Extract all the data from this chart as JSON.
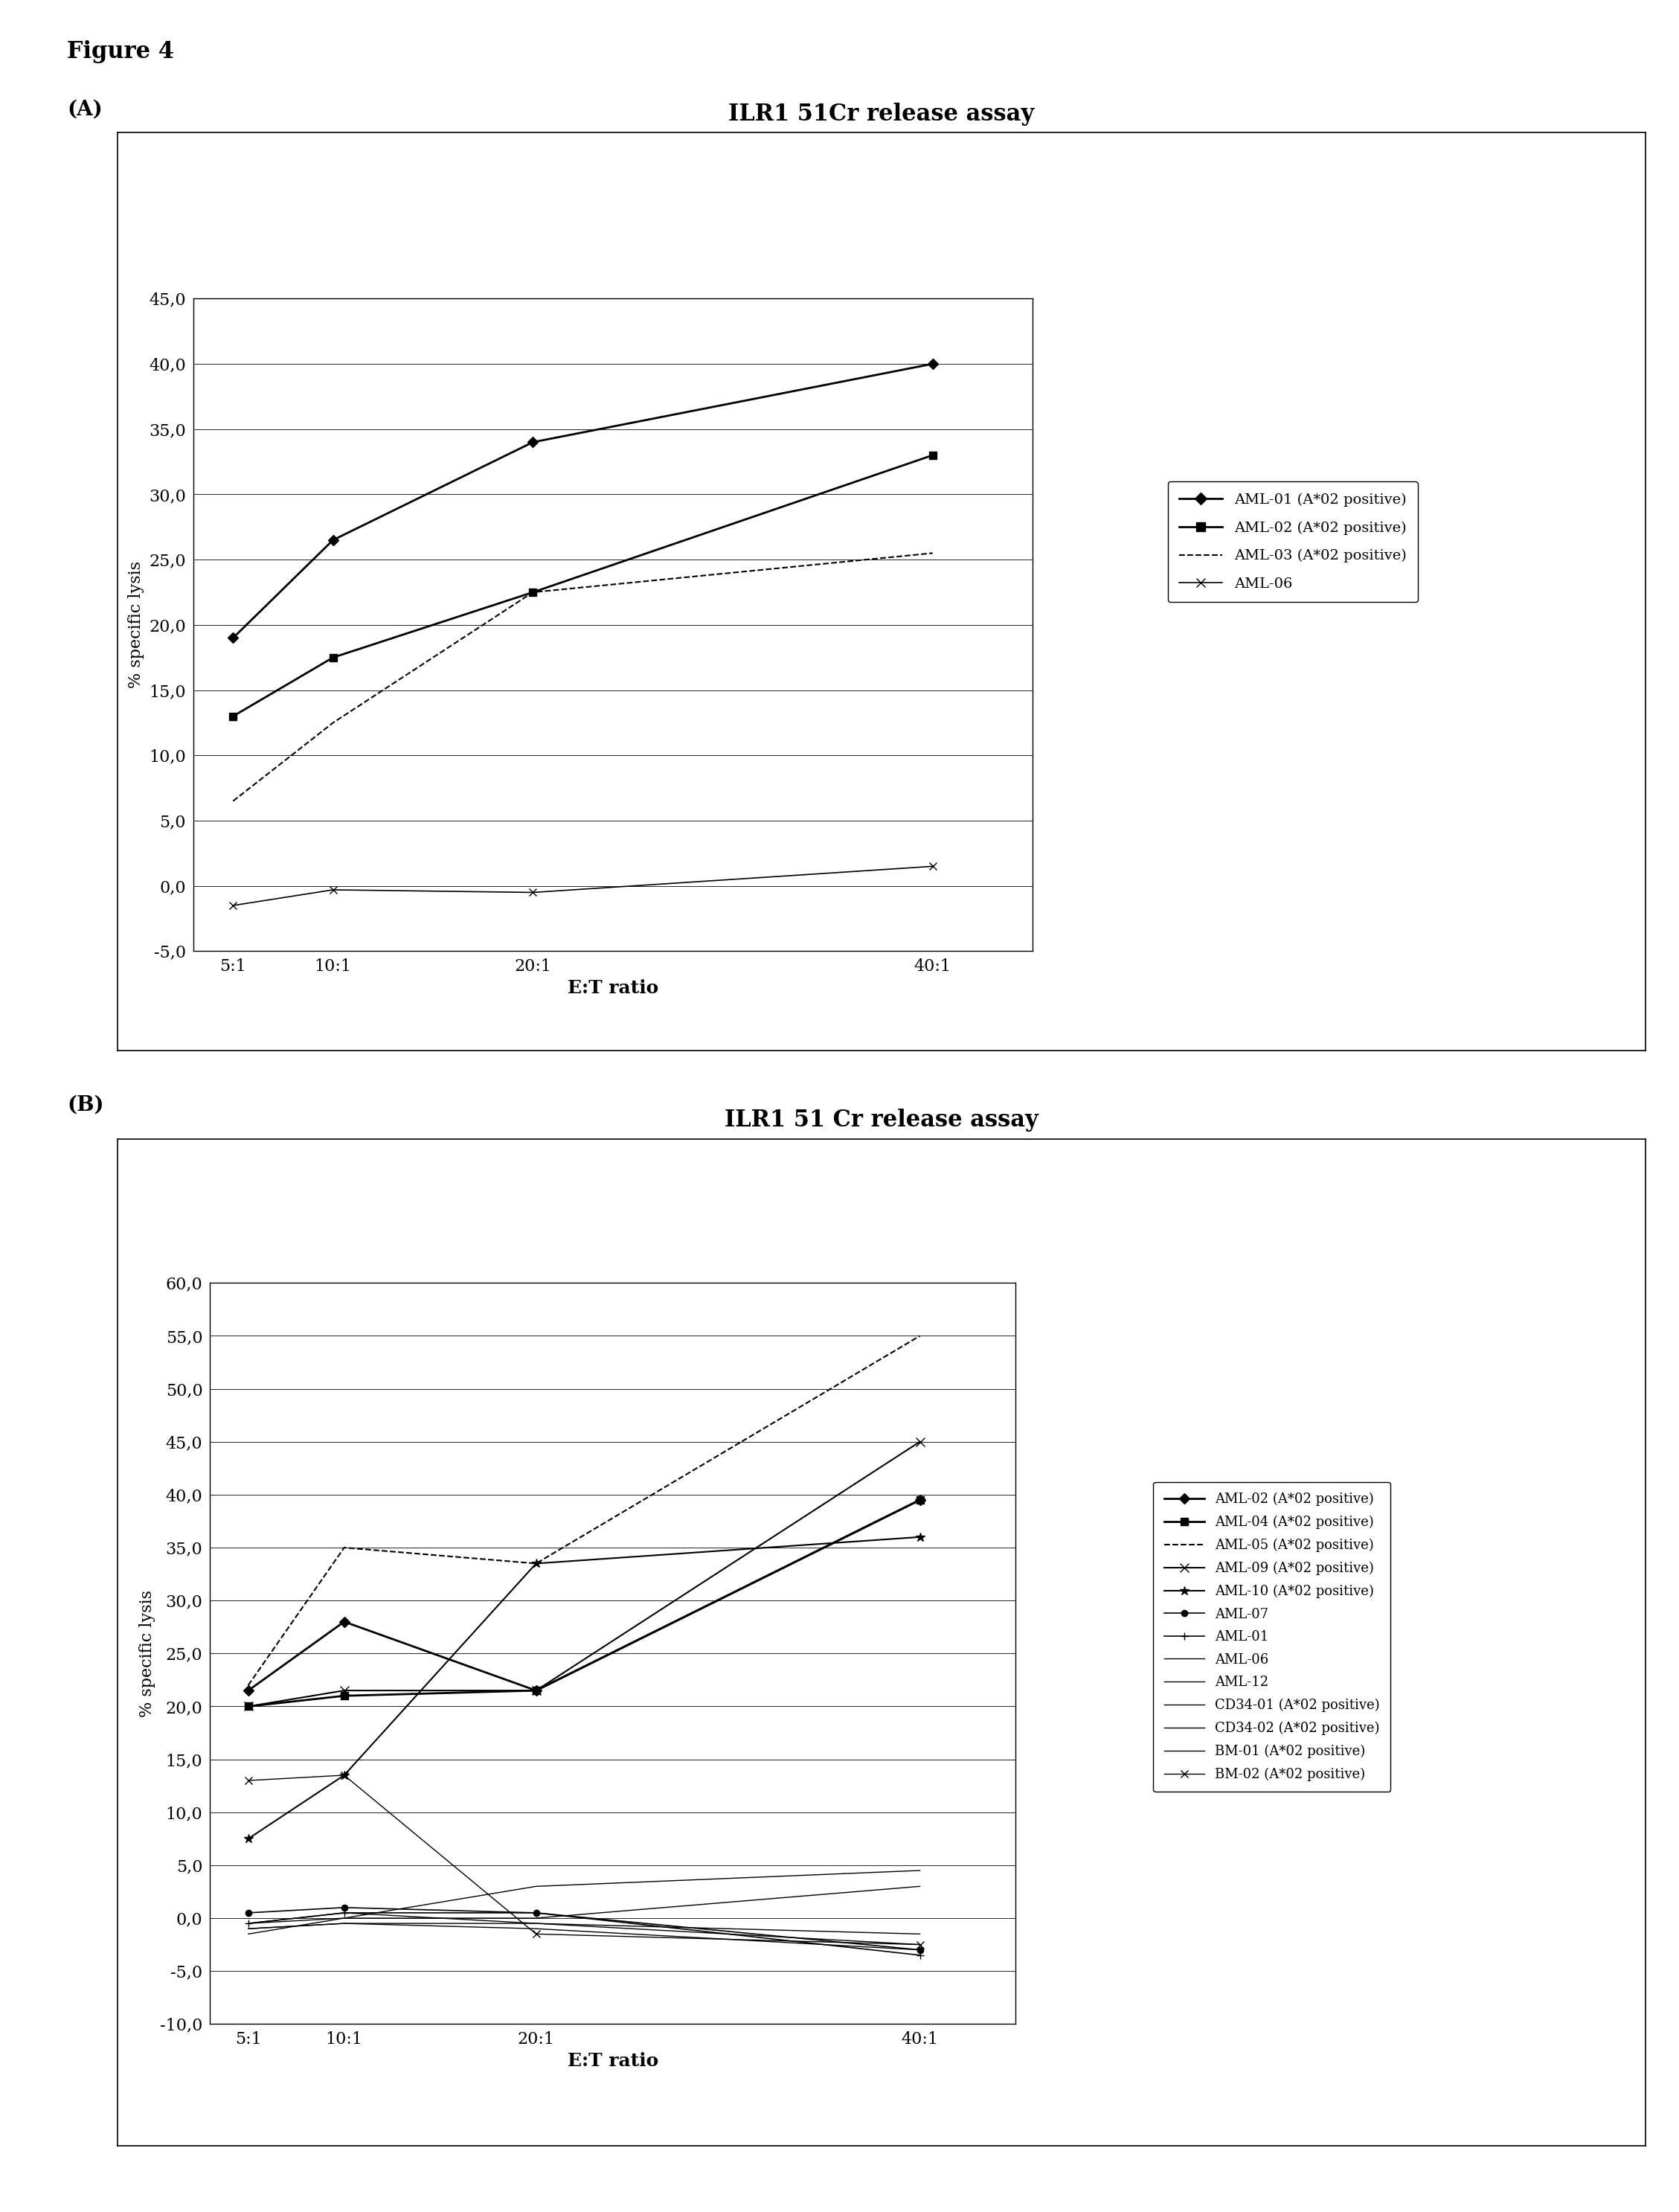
{
  "fig_label": "Figure 4",
  "panel_A": {
    "title": "ILR1 51Cr release assay",
    "xlabel": "E:T ratio",
    "ylabel": "% specific lysis",
    "xtick_labels": [
      "5:1",
      "10:1",
      "20:1",
      "40:1"
    ],
    "x_values": [
      5,
      10,
      20,
      40
    ],
    "ylim": [
      -5.0,
      45.0
    ],
    "yticks": [
      -5.0,
      0.0,
      5.0,
      10.0,
      15.0,
      20.0,
      25.0,
      30.0,
      35.0,
      40.0,
      45.0
    ],
    "series": [
      {
        "label": "AML-01 (A*02 positive)",
        "values": [
          19.0,
          26.5,
          34.0,
          40.0
        ],
        "linestyle": "-",
        "marker": "D",
        "linewidth": 2.0,
        "markersize": 7
      },
      {
        "label": "AML-02 (A*02 positive)",
        "values": [
          13.0,
          17.5,
          22.5,
          33.0
        ],
        "linestyle": "-",
        "marker": "s",
        "linewidth": 2.0,
        "markersize": 7
      },
      {
        "label": "AML-03 (A*02 positive)",
        "values": [
          6.5,
          12.5,
          22.5,
          25.5
        ],
        "linestyle": "--",
        "marker": null,
        "linewidth": 1.5,
        "markersize": 0
      },
      {
        "label": "AML-06",
        "values": [
          -1.5,
          -0.3,
          -0.5,
          1.5
        ],
        "linestyle": "-",
        "marker": "x",
        "linewidth": 1.2,
        "markersize": 7
      }
    ]
  },
  "panel_B": {
    "title": "ILR1 51 Cr release assay",
    "xlabel": "E:T ratio",
    "ylabel": "% specific lysis",
    "xtick_labels": [
      "5:1",
      "10:1",
      "20:1",
      "40:1"
    ],
    "x_values": [
      5,
      10,
      20,
      40
    ],
    "ylim": [
      -10.0,
      60.0
    ],
    "yticks": [
      -10.0,
      -5.0,
      0.0,
      5.0,
      10.0,
      15.0,
      20.0,
      25.0,
      30.0,
      35.0,
      40.0,
      45.0,
      50.0,
      55.0,
      60.0
    ],
    "series": [
      {
        "label": "AML-02 (A*02 positive)",
        "values": [
          21.5,
          28.0,
          21.5,
          39.5
        ],
        "linestyle": "-",
        "marker": "D",
        "linewidth": 2.0,
        "markersize": 7
      },
      {
        "label": "AML-04 (A*02 positive)",
        "values": [
          20.0,
          21.0,
          21.5,
          39.5
        ],
        "linestyle": "-",
        "marker": "s",
        "linewidth": 2.0,
        "markersize": 7
      },
      {
        "label": "AML-05 (A*02 positive)",
        "values": [
          22.0,
          35.0,
          33.5,
          55.0
        ],
        "linestyle": "--",
        "marker": null,
        "linewidth": 1.5,
        "markersize": 0
      },
      {
        "label": "AML-09 (A*02 positive)",
        "values": [
          20.0,
          21.5,
          21.5,
          45.0
        ],
        "linestyle": "-",
        "marker": "x",
        "linewidth": 1.5,
        "markersize": 8
      },
      {
        "label": "AML-10 (A*02 positive)",
        "values": [
          7.5,
          13.5,
          33.5,
          36.0
        ],
        "linestyle": "-",
        "marker": "*",
        "linewidth": 1.5,
        "markersize": 9
      },
      {
        "label": "AML-07",
        "values": [
          0.5,
          1.0,
          0.5,
          -3.0
        ],
        "linestyle": "-",
        "marker": "o",
        "linewidth": 1.2,
        "markersize": 6
      },
      {
        "label": "AML-01",
        "values": [
          -0.5,
          0.5,
          0.5,
          -3.5
        ],
        "linestyle": "-",
        "marker": "+",
        "linewidth": 1.2,
        "markersize": 7
      },
      {
        "label": "AML-06",
        "values": [
          -1.0,
          -0.5,
          -1.0,
          -3.0
        ],
        "linestyle": "-",
        "marker": null,
        "linewidth": 1.0,
        "markersize": 0
      },
      {
        "label": "AML-12",
        "values": [
          -1.5,
          0.0,
          0.0,
          3.0
        ],
        "linestyle": "-",
        "marker": null,
        "linewidth": 1.0,
        "markersize": 0
      },
      {
        "label": "CD34-01 (A*02 positive)",
        "values": [
          -0.5,
          0.0,
          3.0,
          4.5
        ],
        "linestyle": "-",
        "marker": null,
        "linewidth": 1.0,
        "markersize": 0
      },
      {
        "label": "CD34-02 (A*02 positive)",
        "values": [
          -1.0,
          -0.5,
          -0.5,
          -2.5
        ],
        "linestyle": "-",
        "marker": null,
        "linewidth": 1.0,
        "markersize": 0
      },
      {
        "label": "BM-01 (A*02 positive)",
        "values": [
          -0.5,
          0.5,
          -0.5,
          -1.5
        ],
        "linestyle": "-",
        "marker": null,
        "linewidth": 1.0,
        "markersize": 0
      },
      {
        "label": "BM-02 (A*02 positive)",
        "values": [
          13.0,
          13.5,
          -1.5,
          -2.5
        ],
        "linestyle": "-",
        "marker": "x",
        "linewidth": 1.0,
        "markersize": 7
      }
    ]
  }
}
